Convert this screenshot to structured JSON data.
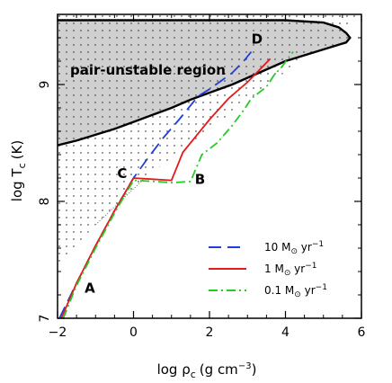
{
  "chart_data": {
    "type": "line",
    "xlabel": "log ρ",
    "xlabel_sub": "c",
    "xlabel_units": "(g cm",
    "xlabel_units_sup": "−3",
    "xlabel_units_end": ")",
    "ylabel": "log T",
    "ylabel_sub": "c",
    "ylabel_units": "(K)",
    "xlim": [
      -2,
      6
    ],
    "ylim": [
      7,
      9.6
    ],
    "xticks": [
      -2,
      0,
      2,
      4,
      6
    ],
    "xtick_labels": [
      "−2",
      "0",
      "2",
      "4",
      "6"
    ],
    "yticks": [
      7,
      8,
      9
    ],
    "ytick_labels": [
      "7",
      "8",
      "9"
    ],
    "region_label": "pair-unstable region",
    "pair_unstable_boundary": [
      [
        -2,
        9.55
      ],
      [
        -1,
        9.55
      ],
      [
        0,
        9.55
      ],
      [
        1,
        9.55
      ],
      [
        2,
        9.55
      ],
      [
        3,
        9.55
      ],
      [
        4,
        9.55
      ],
      [
        5,
        9.53
      ],
      [
        5.4,
        9.49
      ],
      [
        5.6,
        9.44
      ],
      [
        5.7,
        9.4
      ],
      [
        5.6,
        9.36
      ],
      [
        5.2,
        9.32
      ],
      [
        4.7,
        9.27
      ],
      [
        4.0,
        9.2
      ],
      [
        3.3,
        9.1
      ],
      [
        2.6,
        9.0
      ],
      [
        2.0,
        8.93
      ],
      [
        1.5,
        8.87
      ],
      [
        1.0,
        8.8
      ],
      [
        0.5,
        8.74
      ],
      [
        0,
        8.68
      ],
      [
        -0.5,
        8.62
      ],
      [
        -1,
        8.57
      ],
      [
        -1.5,
        8.52
      ],
      [
        -2,
        8.48
      ]
    ],
    "dotted_boundary_line": [
      [
        -1.0,
        7.8
      ],
      [
        0.3,
        8.2
      ]
    ],
    "series": [
      {
        "name": "10 M⊙ yr⁻¹",
        "legend_main": "10 M",
        "legend_sub": "⊙",
        "legend_unit": " yr",
        "legend_sup": "−1",
        "color": "#1f3fd8",
        "dash": "14,7",
        "points": [
          [
            -1.95,
            7.0
          ],
          [
            -1.5,
            7.3
          ],
          [
            -1.0,
            7.62
          ],
          [
            -0.5,
            7.92
          ],
          [
            0.0,
            8.2
          ],
          [
            0.4,
            8.38
          ],
          [
            0.8,
            8.55
          ],
          [
            1.2,
            8.7
          ],
          [
            1.5,
            8.82
          ],
          [
            1.7,
            8.9
          ],
          [
            2.0,
            8.96
          ],
          [
            2.3,
            9.03
          ],
          [
            2.6,
            9.1
          ],
          [
            2.9,
            9.2
          ],
          [
            3.1,
            9.28
          ]
        ]
      },
      {
        "name": "1 M⊙ yr⁻¹",
        "legend_main": "1 M",
        "legend_sub": "⊙",
        "legend_unit": " yr",
        "legend_sup": "−1",
        "color": "#e4191c",
        "dash": "",
        "points": [
          [
            -1.9,
            7.0
          ],
          [
            -1.5,
            7.3
          ],
          [
            -1.0,
            7.62
          ],
          [
            -0.5,
            7.92
          ],
          [
            0.0,
            8.2
          ],
          [
            0.5,
            8.19
          ],
          [
            1.0,
            8.18
          ],
          [
            1.3,
            8.42
          ],
          [
            1.6,
            8.54
          ],
          [
            2.0,
            8.7
          ],
          [
            2.5,
            8.88
          ],
          [
            3.0,
            9.02
          ],
          [
            3.3,
            9.12
          ],
          [
            3.6,
            9.22
          ]
        ]
      },
      {
        "name": "0.1 M⊙ yr⁻¹",
        "legend_main": "0.1 M",
        "legend_sub": "⊙",
        "legend_unit": " yr",
        "legend_sup": "−1",
        "color": "#22cc22",
        "dash": "10,4,2,4",
        "points": [
          [
            -1.85,
            7.0
          ],
          [
            -1.5,
            7.28
          ],
          [
            -1.0,
            7.6
          ],
          [
            -0.5,
            7.9
          ],
          [
            0.0,
            8.18
          ],
          [
            0.6,
            8.17
          ],
          [
            1.0,
            8.16
          ],
          [
            1.5,
            8.17
          ],
          [
            1.8,
            8.4
          ],
          [
            2.2,
            8.5
          ],
          [
            2.6,
            8.65
          ],
          [
            2.9,
            8.78
          ],
          [
            3.1,
            8.88
          ],
          [
            3.5,
            8.98
          ],
          [
            3.7,
            9.08
          ],
          [
            3.9,
            9.15
          ],
          [
            4.2,
            9.28
          ]
        ]
      }
    ],
    "point_labels": [
      {
        "text": "A",
        "x": -1.15,
        "y": 7.22
      },
      {
        "text": "B",
        "x": 1.75,
        "y": 8.15
      },
      {
        "text": "C",
        "x": -0.3,
        "y": 8.2
      },
      {
        "text": "D",
        "x": 3.25,
        "y": 9.35
      }
    ],
    "legend_placement": "bottom-right",
    "grid": false
  }
}
